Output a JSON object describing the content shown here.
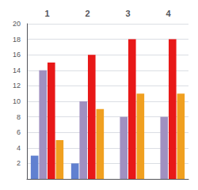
{
  "chart_data": {
    "type": "bar",
    "categories": [
      "1",
      "2",
      "3",
      "4"
    ],
    "series": [
      {
        "color": "#6080d0",
        "values": [
          3,
          2,
          0,
          0
        ]
      },
      {
        "color": "#a090c0",
        "values": [
          14,
          10,
          8,
          8
        ]
      },
      {
        "color": "#e81818",
        "values": [
          15,
          16,
          18,
          18
        ]
      },
      {
        "color": "#f0a020",
        "values": [
          5,
          9,
          11,
          11
        ]
      }
    ],
    "ylim": [
      0,
      20
    ],
    "yticks": [
      2,
      4,
      6,
      8,
      10,
      12,
      14,
      16,
      18,
      20
    ],
    "grid": true
  }
}
